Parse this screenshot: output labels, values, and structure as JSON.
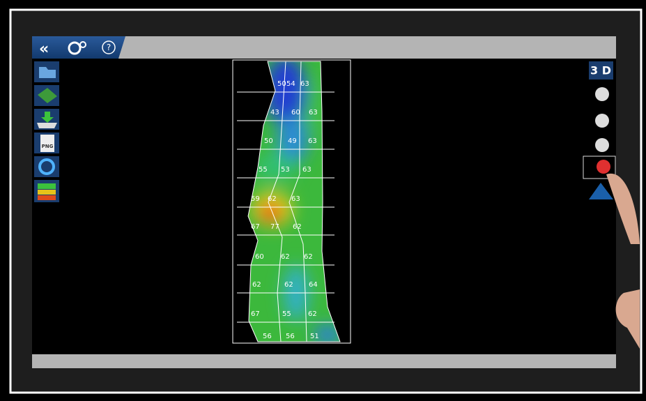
{
  "toolbar": {
    "view_button": "3 D",
    "export_label": "PNG"
  },
  "map": {
    "rows": [
      [
        50,
        54,
        63
      ],
      [
        43,
        60,
        63
      ],
      [
        50,
        49,
        63
      ],
      [
        55,
        53,
        63
      ],
      [
        59,
        62,
        63
      ],
      [
        67,
        77,
        62
      ],
      [
        60,
        62,
        62
      ],
      [
        62,
        62,
        64
      ],
      [
        67,
        55,
        62
      ],
      [
        56,
        56,
        51
      ]
    ]
  }
}
